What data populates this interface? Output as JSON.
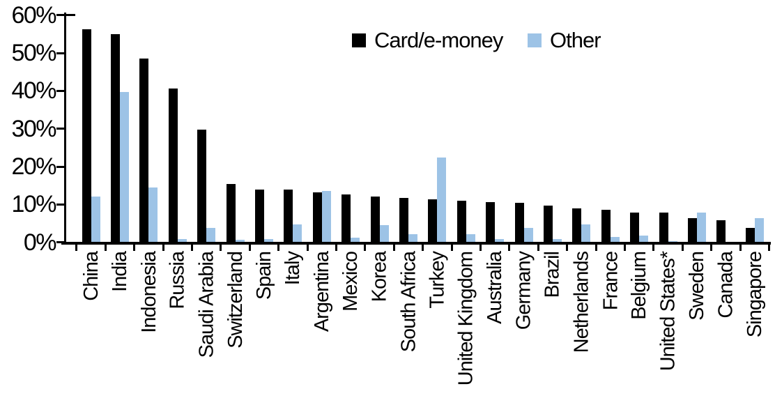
{
  "chart_data": {
    "type": "bar",
    "title": "",
    "xlabel": "",
    "ylabel": "",
    "ylim": [
      0,
      60
    ],
    "grid": false,
    "legend_position": "top-center",
    "y_tick_labels": [
      "0%",
      "10%",
      "20%",
      "30%",
      "40%",
      "50%",
      "60%"
    ],
    "y_tick_values": [
      0,
      10,
      20,
      30,
      40,
      50,
      60
    ],
    "categories": [
      "China",
      "India",
      "Indonesia",
      "Russia",
      "Saudi Arabia",
      "Switzerland",
      "Spain",
      "Italy",
      "Argentina",
      "Mexico",
      "Korea",
      "South Africa",
      "Turkey",
      "United Kingdom",
      "Australia",
      "Germany",
      "Brazil",
      "Netherlands",
      "France",
      "Belgium",
      "United States*",
      "Sweden",
      "Canada",
      "Singapore"
    ],
    "series": [
      {
        "name": "Card/e-money",
        "color": "#000000",
        "values": [
          56.3,
          55.1,
          48.5,
          40.7,
          29.8,
          15.5,
          14.0,
          13.9,
          13.2,
          12.7,
          12.1,
          11.7,
          11.5,
          11.0,
          10.7,
          10.4,
          9.8,
          9.1,
          8.6,
          8.0,
          7.9,
          6.5,
          5.9,
          3.8
        ]
      },
      {
        "name": "Other",
        "color": "#9DC3E6",
        "values": [
          12.2,
          39.8,
          14.5,
          0.9,
          3.8,
          0.7,
          0.9,
          4.8,
          13.7,
          1.2,
          4.6,
          2.3,
          22.4,
          2.3,
          0.9,
          3.8,
          1.0,
          4.7,
          1.4,
          1.9,
          0.3,
          8.0,
          0.0,
          6.4
        ]
      }
    ]
  }
}
